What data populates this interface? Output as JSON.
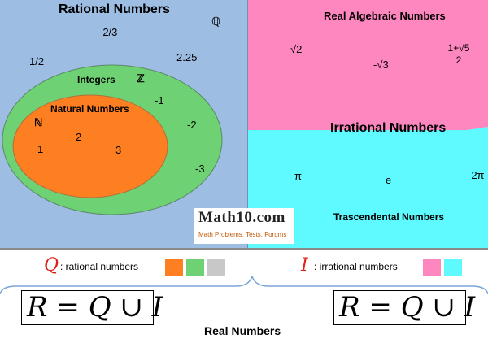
{
  "rational": {
    "title": "Rational Numbers",
    "symbol": "ℚ",
    "examples": [
      "-2/3",
      "1/2",
      "2.25"
    ],
    "integers_label": "Integers",
    "integers_symbol": "ℤ",
    "negatives": [
      "-1",
      "-2",
      "-3"
    ],
    "natural_label": "Natural Numbers",
    "natural_symbol": "ℕ",
    "naturals": [
      "1",
      "2",
      "3"
    ]
  },
  "algebraic": {
    "title": "Real Algebraic Numbers",
    "examples": [
      "√2",
      "-√3"
    ],
    "fraction_num": "1+√5",
    "fraction_den": "2"
  },
  "irrational": {
    "title": "Irrational Numbers"
  },
  "transcendental": {
    "title": "Trascendental Numbers",
    "examples": [
      "π",
      "e",
      "-2π"
    ]
  },
  "logo": {
    "text": "Math10.com",
    "tagline": "Math Problems, Tests, Forums"
  },
  "legend": {
    "rational_symbol": "Q",
    "rational_text": ": rational numbers",
    "irrational_symbol": "I",
    "irrational_text": ": irrational numbers"
  },
  "equation": {
    "left": "R = Q ∪ I",
    "right": "R = Q ∪ I"
  },
  "footer": {
    "label": "Real Numbers"
  },
  "colors": {
    "rational_bg": "#9dbde3",
    "integers": "#6ed173",
    "natural": "#fe7f22",
    "algebraic_bg": "#ff87c0",
    "transcendental_bg": "#5ffaff",
    "legend_gray": "#c8c8c8",
    "legend_red": "#e0201a"
  }
}
